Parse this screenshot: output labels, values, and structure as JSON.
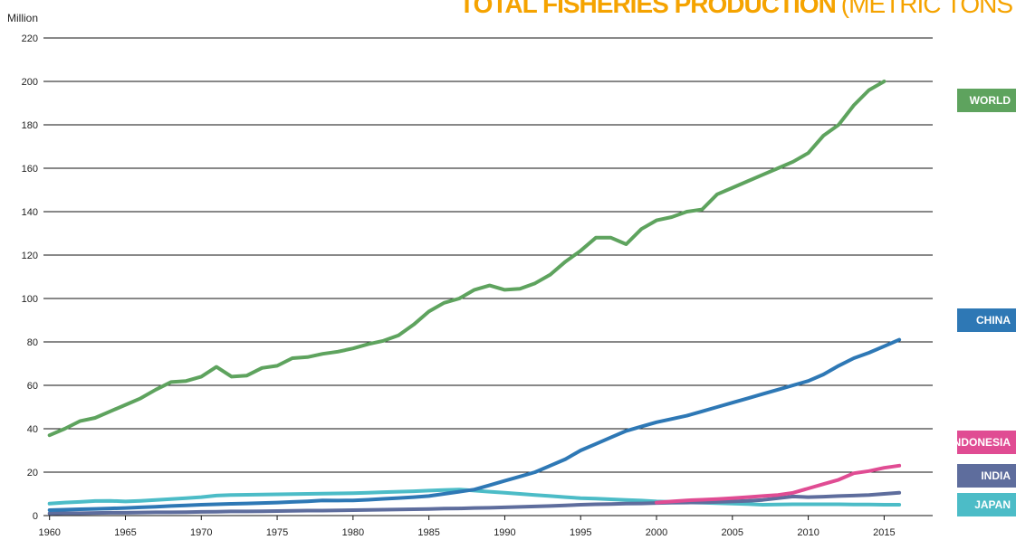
{
  "chart_data": {
    "type": "line",
    "title": "TOTAL FISHERIES PRODUCTION",
    "subtitle": "(METRIC TONS",
    "y_label": "Million",
    "x": [
      1960,
      1961,
      1962,
      1963,
      1964,
      1965,
      1966,
      1967,
      1968,
      1969,
      1970,
      1971,
      1972,
      1973,
      1974,
      1975,
      1976,
      1977,
      1978,
      1979,
      1980,
      1981,
      1982,
      1983,
      1984,
      1985,
      1986,
      1987,
      1988,
      1989,
      1990,
      1991,
      1992,
      1993,
      1994,
      1995,
      1996,
      1997,
      1998,
      1999,
      2000,
      2001,
      2002,
      2003,
      2004,
      2005,
      2006,
      2007,
      2008,
      2009,
      2010,
      2011,
      2012,
      2013,
      2014,
      2015,
      2016
    ],
    "series": [
      {
        "name": "WORLD",
        "color": "#5ea35e",
        "values": [
          37,
          40,
          43.5,
          45,
          48,
          51,
          54,
          58,
          61.5,
          62,
          64,
          68.5,
          64,
          64.5,
          68,
          69,
          72.5,
          73,
          74.5,
          75.5,
          77,
          79,
          80.5,
          83,
          88,
          94,
          98,
          100,
          104,
          106,
          104,
          104.5,
          107,
          111,
          117,
          122,
          128,
          128,
          125,
          132,
          136,
          137.5,
          140,
          141,
          148,
          151,
          154,
          157,
          160,
          163,
          167,
          175,
          180,
          189,
          196,
          200,
          null
        ]
      },
      {
        "name": "CHINA",
        "color": "#2e78b5",
        "values": [
          2.5,
          2.7,
          2.9,
          3.1,
          3.3,
          3.5,
          3.8,
          4.1,
          4.4,
          4.7,
          5,
          5.2,
          5.4,
          5.6,
          5.8,
          6,
          6.3,
          6.6,
          7,
          6.9,
          7,
          7.3,
          7.7,
          8.1,
          8.5,
          9,
          10,
          11,
          12,
          14,
          16,
          18,
          20,
          23,
          26,
          30,
          33,
          36,
          39,
          41,
          43,
          44.5,
          46,
          48,
          50,
          52,
          54,
          56,
          58,
          60,
          62,
          65,
          69,
          72.5,
          75,
          78,
          81
        ]
      },
      {
        "name": "INDONESIA",
        "color": "#e04c93",
        "values": [
          null,
          null,
          null,
          null,
          null,
          null,
          null,
          null,
          null,
          null,
          null,
          null,
          null,
          null,
          null,
          null,
          null,
          null,
          null,
          null,
          null,
          null,
          null,
          null,
          null,
          null,
          null,
          null,
          null,
          null,
          null,
          null,
          null,
          null,
          null,
          null,
          null,
          null,
          null,
          null,
          6,
          6.5,
          7,
          7.3,
          7.6,
          8,
          8.5,
          9,
          9.5,
          10.5,
          12.5,
          14.5,
          16.5,
          19.5,
          20.5,
          22,
          23
        ]
      },
      {
        "name": "INDIA",
        "color": "#5e6d9d",
        "values": [
          1,
          1.1,
          1.1,
          1.2,
          1.3,
          1.3,
          1.4,
          1.5,
          1.5,
          1.6,
          1.7,
          1.8,
          1.9,
          1.9,
          2,
          2.1,
          2.2,
          2.3,
          2.3,
          2.4,
          2.5,
          2.6,
          2.7,
          2.8,
          2.9,
          3,
          3.2,
          3.3,
          3.5,
          3.6,
          3.8,
          4,
          4.2,
          4.4,
          4.7,
          5,
          5.2,
          5.3,
          5.5,
          5.6,
          5.8,
          5.9,
          6,
          6.1,
          6.3,
          6.5,
          6.8,
          7.2,
          8,
          8.8,
          8.5,
          8.7,
          9,
          9.2,
          9.5,
          10,
          10.5
        ]
      },
      {
        "name": "JAPAN",
        "color": "#4cbcc7",
        "values": [
          5.5,
          6,
          6.3,
          6.7,
          6.8,
          6.5,
          6.8,
          7.2,
          7.6,
          8,
          8.5,
          9.2,
          9.5,
          9.6,
          9.7,
          9.8,
          9.9,
          10,
          10.1,
          10.2,
          10.3,
          10.5,
          10.8,
          11,
          11.2,
          11.5,
          11.8,
          12,
          11.5,
          11,
          10.5,
          10,
          9.5,
          9,
          8.5,
          8,
          7.8,
          7.5,
          7.2,
          6.9,
          6.5,
          6.3,
          6.1,
          5.9,
          5.7,
          5.5,
          5.3,
          5,
          5.1,
          5.2,
          5.2,
          5.2,
          5.2,
          5.1,
          5.1,
          5,
          5
        ]
      }
    ],
    "xlim": [
      1959.6,
      2018.2
    ],
    "ylim": [
      0,
      220
    ],
    "xticks": [
      1960,
      1965,
      1970,
      1975,
      1980,
      1985,
      1990,
      1995,
      2000,
      2005,
      2010,
      2015
    ],
    "yticks": [
      0,
      20,
      40,
      60,
      80,
      100,
      120,
      140,
      160,
      180,
      200,
      220
    ],
    "grid": true
  }
}
